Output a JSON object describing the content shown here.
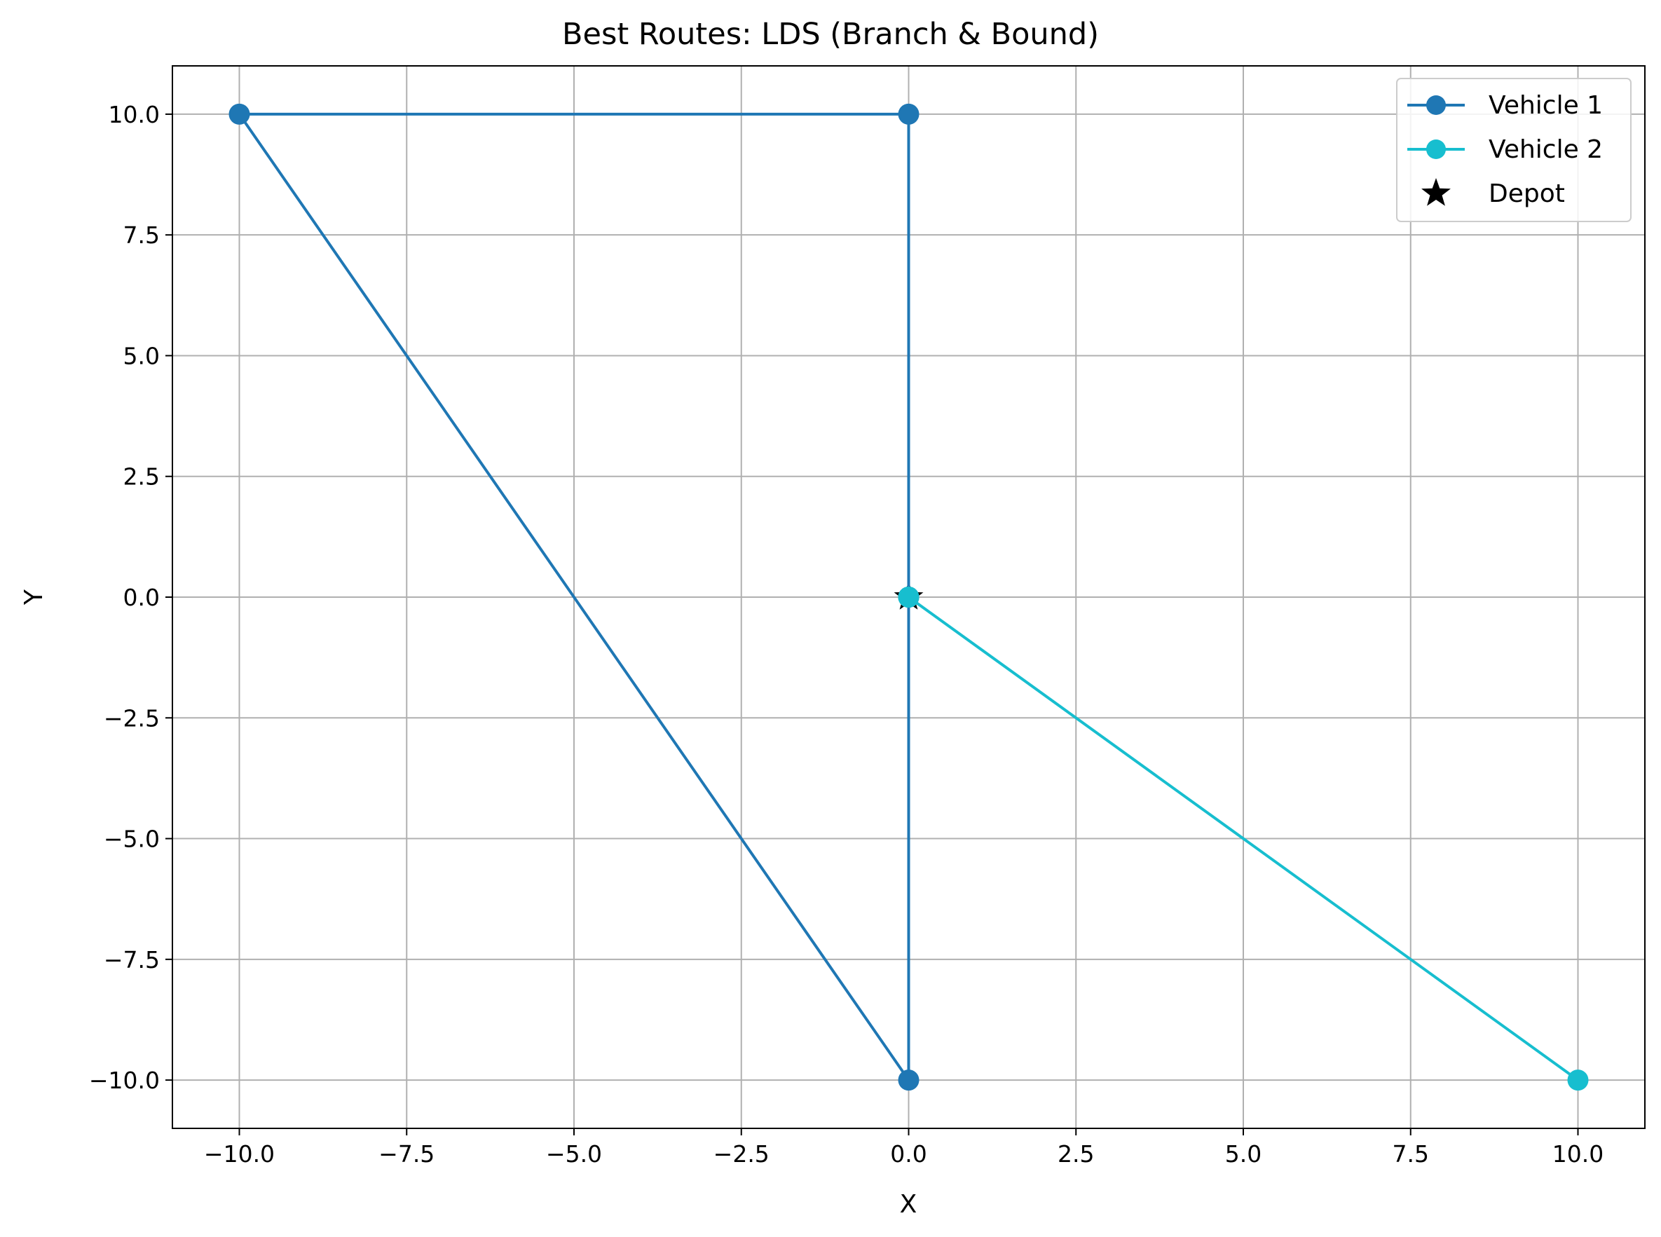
{
  "chart_data": {
    "type": "line",
    "title": "Best Routes: LDS (Branch & Bound)",
    "xlabel": "X",
    "ylabel": "Y",
    "xlim": [
      -11,
      11
    ],
    "ylim": [
      -11,
      11
    ],
    "xticks": [
      -10.0,
      -7.5,
      -5.0,
      -2.5,
      0.0,
      2.5,
      5.0,
      7.5,
      10.0
    ],
    "yticks": [
      -10.0,
      -7.5,
      -5.0,
      -2.5,
      0.0,
      2.5,
      5.0,
      7.5,
      10.0
    ],
    "xtick_labels": [
      "−10.0",
      "−7.5",
      "−5.0",
      "−2.5",
      "0.0",
      "2.5",
      "5.0",
      "7.5",
      "10.0"
    ],
    "ytick_labels": [
      "−10.0",
      "−7.5",
      "−5.0",
      "−2.5",
      "0.0",
      "2.5",
      "5.0",
      "7.5",
      "10.0"
    ],
    "grid": true,
    "legend_position": "top-right",
    "series": [
      {
        "name": "Vehicle 1",
        "color": "#1f77b4",
        "marker": "circle",
        "points": [
          [
            0,
            0
          ],
          [
            0,
            10
          ],
          [
            -10,
            10
          ],
          [
            0,
            -10
          ],
          [
            0,
            0
          ]
        ]
      },
      {
        "name": "Vehicle 2",
        "color": "#17becf",
        "marker": "circle",
        "points": [
          [
            0,
            0
          ],
          [
            10,
            -10
          ],
          [
            0,
            0
          ]
        ]
      }
    ],
    "depot": {
      "name": "Depot",
      "color": "#000000",
      "marker": "star",
      "point": [
        0,
        0
      ]
    }
  }
}
